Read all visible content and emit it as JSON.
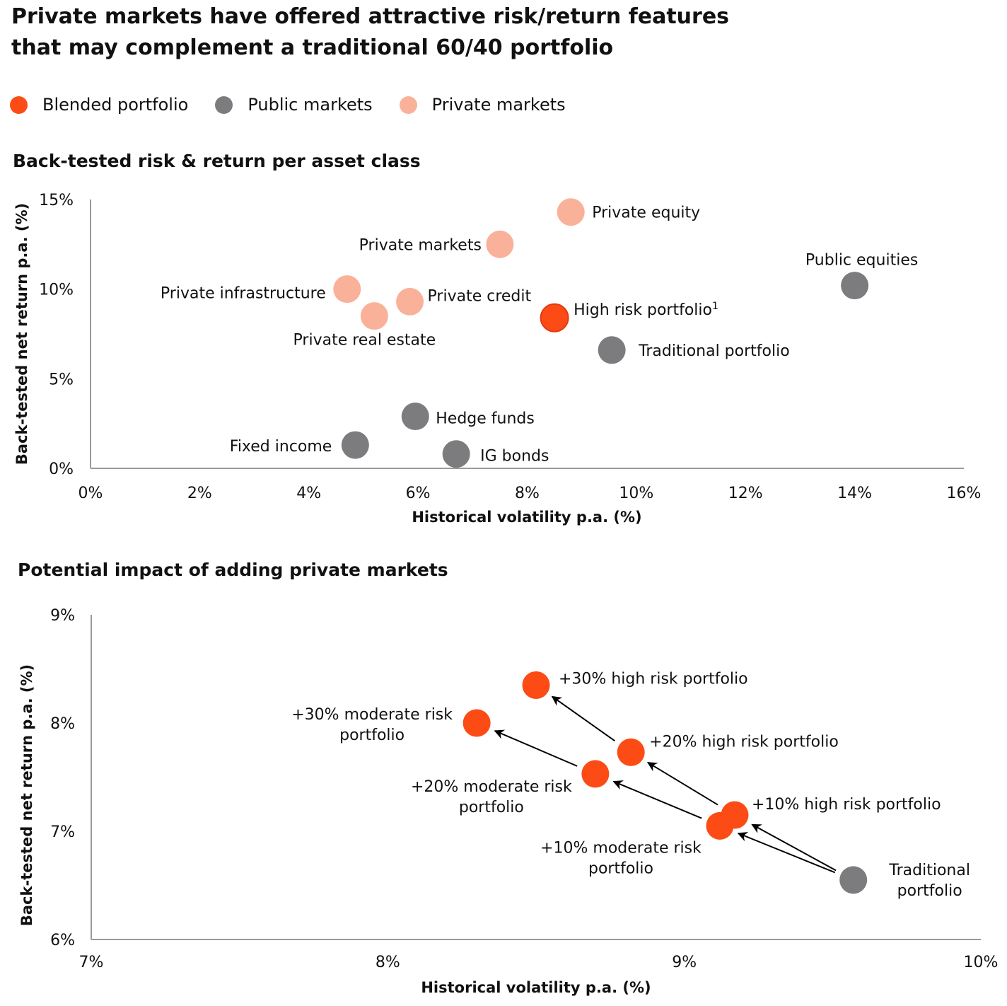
{
  "title_line1": "Private markets have offered attractive risk/return features",
  "title_line2": "that may complement a traditional 60/40 portfolio",
  "colors": {
    "blended": "#fc4b14",
    "public": "#7c7c7e",
    "private": "#fab19a"
  },
  "legend": [
    {
      "label": "Blended portfolio",
      "color": "#fc4b14"
    },
    {
      "label": "Public markets",
      "color": "#7c7c7e"
    },
    {
      "label": "Private markets",
      "color": "#fab19a"
    }
  ],
  "chart_data": [
    {
      "type": "scatter",
      "title": "Back-tested risk & return per asset class",
      "xlabel": "Historical volatility p.a. (%)",
      "ylabel": "Back-tested  net return p.a. (%)",
      "xlim": [
        0,
        16
      ],
      "ylim": [
        0,
        15
      ],
      "xticks": [
        "0%",
        "2%",
        "4%",
        "6%",
        "8%",
        "10%",
        "12%",
        "14%",
        "16%"
      ],
      "yticks": [
        "0%",
        "5%",
        "10%",
        "15%"
      ],
      "points": [
        {
          "label": "Private equity",
          "x": 8.8,
          "y": 14.3,
          "group": "private"
        },
        {
          "label": "Private markets",
          "x": 7.5,
          "y": 12.5,
          "group": "private"
        },
        {
          "label": "Private infrastructure",
          "x": 4.7,
          "y": 10.0,
          "group": "private"
        },
        {
          "label": "Private credit",
          "x": 5.85,
          "y": 9.3,
          "group": "private"
        },
        {
          "label": "Private real estate",
          "x": 5.2,
          "y": 8.5,
          "group": "private"
        },
        {
          "label": "High risk portfolio",
          "superscript": "1",
          "x": 8.5,
          "y": 8.4,
          "group": "blended"
        },
        {
          "label": "Public equities",
          "x": 14.0,
          "y": 10.2,
          "group": "public"
        },
        {
          "label": "Traditional portfolio",
          "x": 9.55,
          "y": 6.6,
          "group": "public"
        },
        {
          "label": "Hedge funds",
          "x": 5.95,
          "y": 2.9,
          "group": "public"
        },
        {
          "label": "Fixed income",
          "x": 4.85,
          "y": 1.3,
          "group": "public"
        },
        {
          "label": "IG bonds",
          "x": 6.7,
          "y": 0.8,
          "group": "public"
        }
      ]
    },
    {
      "type": "scatter",
      "title": "Potential impact of adding private markets",
      "xlabel": "Historical volatility p.a. (%)",
      "ylabel": "Back-tested net return p.a. (%)",
      "xlim": [
        7,
        10
      ],
      "ylim": [
        6,
        9
      ],
      "xticks": [
        "7%",
        "8%",
        "9%",
        "10%"
      ],
      "yticks": [
        "6%",
        "7%",
        "8%",
        "9%"
      ],
      "points": [
        {
          "id": "trad",
          "label": "Traditional portfolio",
          "x": 9.57,
          "y": 6.55,
          "group": "public"
        },
        {
          "id": "h10",
          "label": "+10% high risk portfolio",
          "x": 9.17,
          "y": 7.15,
          "group": "blended"
        },
        {
          "id": "m10",
          "label": "+10% moderate risk portfolio",
          "x": 9.12,
          "y": 7.05,
          "group": "blended"
        },
        {
          "id": "h20",
          "label": "+20% high risk portfolio",
          "x": 8.82,
          "y": 7.73,
          "group": "blended"
        },
        {
          "id": "m20",
          "label": "+20% moderate risk portfolio",
          "x": 8.7,
          "y": 7.53,
          "group": "blended"
        },
        {
          "id": "h30",
          "label": "+30% high risk portfolio",
          "x": 8.5,
          "y": 8.35,
          "group": "blended"
        },
        {
          "id": "m30",
          "label": "+30% moderate risk portfolio",
          "x": 8.3,
          "y": 8.0,
          "group": "blended"
        }
      ],
      "arrows": [
        [
          "trad",
          "h10"
        ],
        [
          "trad",
          "m10"
        ],
        [
          "h10",
          "h20"
        ],
        [
          "h20",
          "h30"
        ],
        [
          "m10",
          "m20"
        ],
        [
          "m20",
          "m30"
        ]
      ]
    }
  ]
}
